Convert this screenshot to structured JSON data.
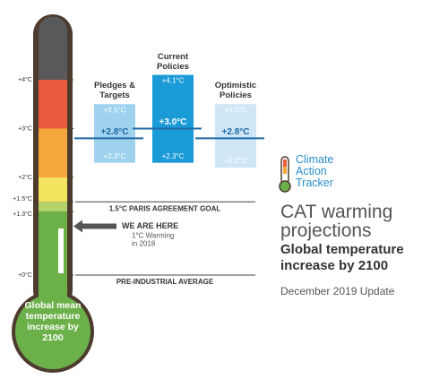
{
  "chart_data": {
    "type": "range",
    "title": "CAT warming projections",
    "subtitle": "Global temperature increase by 2100",
    "note": "December 2019 Update",
    "logo": [
      "Climate",
      "Action",
      "Tracker"
    ],
    "bulb_label": "Global mean temperature increase by 2100",
    "ylim": [
      0,
      5
    ],
    "yticks": [
      {
        "value": 0,
        "label": "+0°C"
      },
      {
        "value": 1.3,
        "label": "+1.3°C"
      },
      {
        "value": 1.5,
        "label": "+1.5°C"
      },
      {
        "value": 2,
        "label": "+2°C"
      },
      {
        "value": 3,
        "label": "+3°C"
      },
      {
        "value": 4,
        "label": "+4°C"
      }
    ],
    "bands": [
      {
        "from": 4,
        "to": 5,
        "color": "#58595b"
      },
      {
        "from": 3,
        "to": 4,
        "color": "#ea5a3d"
      },
      {
        "from": 2,
        "to": 3,
        "color": "#f6a73b"
      },
      {
        "from": 1.5,
        "to": 2,
        "color": "#f3e35e"
      },
      {
        "from": 1.3,
        "to": 1.5,
        "color": "#b5d36b"
      },
      {
        "from": 0,
        "to": 1.3,
        "color": "#6cb04a"
      }
    ],
    "series": [
      {
        "name": "Pledges & Targets",
        "color": "#9fd2ef",
        "values": [
          2.3,
          2.8,
          3.5
        ],
        "value_labels": [
          "+2.3°C",
          "+2.8°C",
          "+3.5°C"
        ]
      },
      {
        "name": "Current Policies",
        "color": "#1a9ad7",
        "values": [
          2.3,
          3.0,
          4.1
        ],
        "value_labels": [
          "+2.3°C",
          "+3.0°C",
          "+4.1°C"
        ]
      },
      {
        "name": "Optimistic Policies",
        "color": "#cfe6f6",
        "values": [
          2.2,
          2.8,
          3.5
        ],
        "value_labels": [
          "+2.2°C",
          "+2.8°C",
          "+3.5°C"
        ]
      }
    ],
    "reference_lines": [
      {
        "value": 1.5,
        "label": "1.5°C PARIS AGREEMENT GOAL"
      },
      {
        "value": 0,
        "label": "PRE-INDUSTRIAL AVERAGE"
      }
    ],
    "marker": {
      "value": 1,
      "label": "WE ARE HERE",
      "note": [
        "1°C Warming",
        "in 2018"
      ]
    }
  }
}
